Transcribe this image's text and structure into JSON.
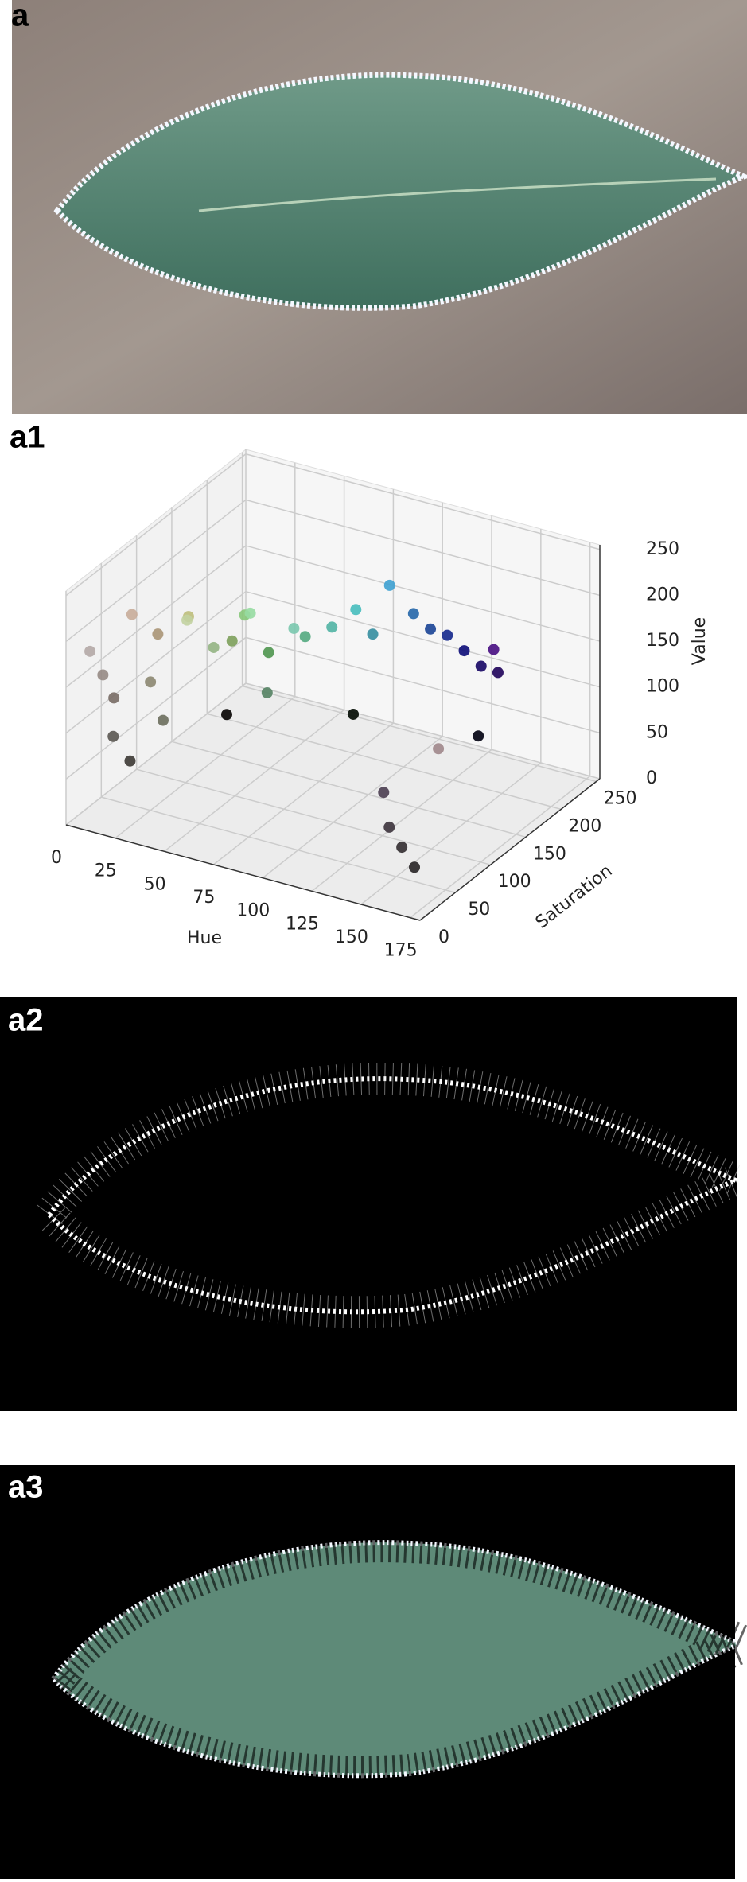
{
  "panels": [
    {
      "label": "a"
    },
    {
      "label": "a1"
    },
    {
      "label": "a2"
    },
    {
      "label": "a3"
    }
  ],
  "chart_data": {
    "type": "scatter3d",
    "xlabel": "Hue",
    "ylabel": "Saturation",
    "zlabel": "Value",
    "xlim": [
      0,
      180
    ],
    "xticks": [
      0,
      25,
      50,
      75,
      100,
      125,
      150,
      175
    ],
    "ylim": [
      0,
      255
    ],
    "yticks": [
      0,
      50,
      100,
      150,
      200,
      250
    ],
    "zlim": [
      0,
      255
    ],
    "zticks": [
      0,
      50,
      100,
      150,
      200,
      250
    ],
    "grid": true,
    "points": {
      "x": [
        5,
        8,
        10,
        12,
        15,
        18,
        20,
        25,
        30,
        35,
        40,
        45,
        50,
        55,
        60,
        65,
        70,
        75,
        80,
        85,
        90,
        95,
        100,
        105,
        110,
        115,
        120,
        125,
        130,
        135,
        140,
        150,
        160,
        170,
        10,
        60,
        120,
        175
      ],
      "y": [
        20,
        30,
        40,
        60,
        25,
        80,
        35,
        50,
        90,
        40,
        60,
        110,
        70,
        100,
        120,
        80,
        90,
        130,
        100,
        140,
        160,
        170,
        180,
        200,
        210,
        220,
        230,
        240,
        250,
        230,
        60,
        40,
        30,
        20,
        200,
        240,
        250,
        40
      ],
      "z": [
        180,
        150,
        120,
        200,
        90,
        170,
        60,
        140,
        190,
        110,
        210,
        160,
        180,
        200,
        150,
        220,
        130,
        170,
        200,
        180,
        190,
        160,
        210,
        170,
        150,
        140,
        120,
        100,
        90,
        130,
        80,
        60,
        50,
        40,
        5,
        10,
        15,
        160
      ]
    }
  }
}
